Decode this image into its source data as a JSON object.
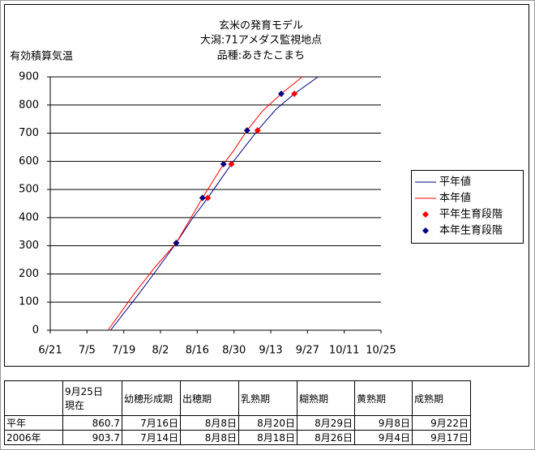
{
  "chart_data": {
    "type": "line",
    "title": [
      "玄米の発育モデル",
      "大潟:71アメダス監視地点",
      "品種:あきたこまち"
    ],
    "y_label": "有効積算気温",
    "xlim": [
      172,
      298
    ],
    "xticks": [
      {
        "value": 172,
        "label": "6/21"
      },
      {
        "value": 186,
        "label": "7/5"
      },
      {
        "value": 200,
        "label": "7/19"
      },
      {
        "value": 214,
        "label": "8/2"
      },
      {
        "value": 228,
        "label": "8/16"
      },
      {
        "value": 242,
        "label": "8/30"
      },
      {
        "value": 256,
        "label": "9/13"
      },
      {
        "value": 270,
        "label": "9/27"
      },
      {
        "value": 284,
        "label": "10/11"
      },
      {
        "value": 298,
        "label": "10/25"
      }
    ],
    "ylim": [
      0,
      900
    ],
    "yticks": [
      0,
      100,
      200,
      300,
      400,
      500,
      600,
      700,
      800,
      900
    ],
    "grid": true,
    "legend": "right",
    "series": [
      {
        "name": "平年値",
        "mode": "line",
        "color": "#000080",
        "x": [
          195,
          205,
          213,
          220,
          226,
          232,
          241,
          251,
          258,
          265,
          274
        ],
        "values": [
          0,
          120,
          220,
          310,
          395,
          470,
          590,
          710,
          785,
          840,
          900
        ]
      },
      {
        "name": "本年値",
        "mode": "line",
        "color": "#ff0000",
        "x": [
          194,
          204,
          212,
          220,
          225,
          230,
          238,
          242,
          247,
          253,
          260,
          268
        ],
        "values": [
          0,
          130,
          225,
          310,
          390,
          470,
          590,
          640,
          710,
          780,
          840,
          900
        ]
      },
      {
        "name": "平年生育段階",
        "mode": "markers",
        "color": "#ff0000",
        "x": [
          220,
          232,
          241,
          251,
          265
        ],
        "values": [
          310,
          470,
          590,
          710,
          840
        ]
      },
      {
        "name": "本年生育段階",
        "mode": "markers",
        "color": "#000080",
        "x": [
          220,
          230,
          238,
          247,
          260
        ],
        "values": [
          310,
          470,
          590,
          710,
          840
        ]
      }
    ]
  },
  "table": {
    "header": [
      "9月25日現在",
      "幼穂形成期",
      "出穂期",
      "乳熟期",
      "糊熟期",
      "黄熟期",
      "成熟期"
    ],
    "rows": [
      [
        "平年",
        860.7,
        "7月16日",
        "8月8日",
        "8月20日",
        "8月29日",
        "9月8日",
        "9月22日"
      ],
      [
        "2006年",
        903.7,
        "7月14日",
        "8月8日",
        "8月18日",
        "8月26日",
        "9月4日",
        "9月17日"
      ]
    ]
  }
}
